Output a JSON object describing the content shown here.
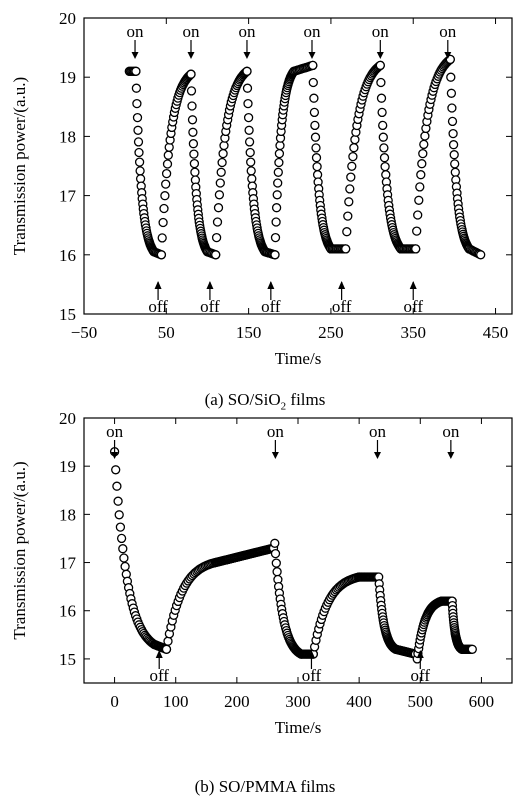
{
  "chart_data": [
    {
      "type": "scatter",
      "caption": "(a) SO/SiO₂ films",
      "caption_main": "(a) SO/SiO",
      "caption_sub": "2",
      "caption_tail": " films",
      "xlabel": "Time/s",
      "ylabel": "Transmission power/(a.u.)",
      "xlim": [
        -50,
        470
      ],
      "ylim": [
        15,
        20
      ],
      "xticks": [
        -50,
        50,
        150,
        250,
        350,
        450
      ],
      "yticks": [
        15,
        16,
        17,
        18,
        19,
        20
      ],
      "grid": false,
      "marker": "open-circle",
      "annotations": [
        {
          "text": "on",
          "x": 12,
          "dir": "down"
        },
        {
          "text": "on",
          "x": 80,
          "dir": "down"
        },
        {
          "text": "on",
          "x": 148,
          "dir": "down"
        },
        {
          "text": "on",
          "x": 227,
          "dir": "down"
        },
        {
          "text": "on",
          "x": 310,
          "dir": "down"
        },
        {
          "text": "on",
          "x": 392,
          "dir": "down"
        },
        {
          "text": "off",
          "x": 40,
          "dir": "up"
        },
        {
          "text": "off",
          "x": 103,
          "dir": "up"
        },
        {
          "text": "off",
          "x": 177,
          "dir": "up"
        },
        {
          "text": "off",
          "x": 263,
          "dir": "up"
        },
        {
          "text": "off",
          "x": 350,
          "dir": "up"
        }
      ],
      "segments": [
        {
          "from": [
            5,
            19.1
          ],
          "to": [
            13,
            19.1
          ],
          "kind": "flat"
        },
        {
          "from": [
            13,
            19.1
          ],
          "to": [
            35,
            16.05
          ],
          "kind": "decay"
        },
        {
          "from": [
            35,
            16.05
          ],
          "to": [
            44,
            16.0
          ],
          "kind": "flat"
        },
        {
          "from": [
            44,
            16.0
          ],
          "to": [
            80,
            19.05
          ],
          "kind": "rise"
        },
        {
          "from": [
            80,
            19.05
          ],
          "to": [
            100,
            16.05
          ],
          "kind": "decay"
        },
        {
          "from": [
            100,
            16.05
          ],
          "to": [
            110,
            16.0
          ],
          "kind": "flat"
        },
        {
          "from": [
            110,
            16.0
          ],
          "to": [
            148,
            19.1
          ],
          "kind": "rise"
        },
        {
          "from": [
            148,
            19.1
          ],
          "to": [
            170,
            16.05
          ],
          "kind": "decay"
        },
        {
          "from": [
            170,
            16.05
          ],
          "to": [
            182,
            16.0
          ],
          "kind": "flat"
        },
        {
          "from": [
            182,
            16.0
          ],
          "to": [
            205,
            19.1
          ],
          "kind": "rise"
        },
        {
          "from": [
            205,
            19.1
          ],
          "to": [
            228,
            19.2
          ],
          "kind": "flat"
        },
        {
          "from": [
            228,
            19.2
          ],
          "to": [
            250,
            16.1
          ],
          "kind": "decay"
        },
        {
          "from": [
            250,
            16.1
          ],
          "to": [
            268,
            16.1
          ],
          "kind": "flat"
        },
        {
          "from": [
            268,
            16.1
          ],
          "to": [
            310,
            19.2
          ],
          "kind": "rise"
        },
        {
          "from": [
            310,
            19.2
          ],
          "to": [
            335,
            16.1
          ],
          "kind": "decay"
        },
        {
          "from": [
            335,
            16.1
          ],
          "to": [
            353,
            16.1
          ],
          "kind": "flat"
        },
        {
          "from": [
            353,
            16.1
          ],
          "to": [
            395,
            19.3
          ],
          "kind": "rise"
        },
        {
          "from": [
            395,
            19.3
          ],
          "to": [
            418,
            16.1
          ],
          "kind": "decay"
        },
        {
          "from": [
            418,
            16.1
          ],
          "to": [
            432,
            16.0
          ],
          "kind": "flat"
        }
      ]
    },
    {
      "type": "scatter",
      "caption": "(b) SO/PMMA films",
      "caption_main": "(b) SO/PMMA films",
      "caption_sub": "",
      "caption_tail": "",
      "xlabel": "Time/s",
      "ylabel": "Transmission power/(a.u.)",
      "xlim": [
        -50,
        650
      ],
      "ylim": [
        14.5,
        20
      ],
      "xticks": [
        0,
        100,
        200,
        300,
        400,
        500,
        600
      ],
      "yticks": [
        15,
        16,
        17,
        18,
        19,
        20
      ],
      "grid": false,
      "marker": "open-circle",
      "annotations": [
        {
          "text": "on",
          "x": 0,
          "dir": "down"
        },
        {
          "text": "on",
          "x": 263,
          "dir": "down"
        },
        {
          "text": "on",
          "x": 430,
          "dir": "down"
        },
        {
          "text": "on",
          "x": 550,
          "dir": "down"
        },
        {
          "text": "off",
          "x": 73,
          "dir": "up"
        },
        {
          "text": "off",
          "x": 322,
          "dir": "up"
        },
        {
          "text": "off",
          "x": 500,
          "dir": "up"
        }
      ],
      "segments": [
        {
          "from": [
            0,
            19.3
          ],
          "to": [
            65,
            15.3
          ],
          "kind": "decay"
        },
        {
          "from": [
            65,
            15.3
          ],
          "to": [
            85,
            15.2
          ],
          "kind": "flat"
        },
        {
          "from": [
            85,
            15.2
          ],
          "to": [
            165,
            17.0
          ],
          "kind": "rise"
        },
        {
          "from": [
            165,
            17.0
          ],
          "to": [
            260,
            17.3
          ],
          "kind": "flat"
        },
        {
          "from": [
            262,
            17.4
          ],
          "to": [
            305,
            15.1
          ],
          "kind": "decay"
        },
        {
          "from": [
            305,
            15.1
          ],
          "to": [
            325,
            15.1
          ],
          "kind": "flat"
        },
        {
          "from": [
            325,
            15.1
          ],
          "to": [
            400,
            16.7
          ],
          "kind": "rise"
        },
        {
          "from": [
            400,
            16.7
          ],
          "to": [
            430,
            16.7
          ],
          "kind": "flat"
        },
        {
          "from": [
            432,
            16.7
          ],
          "to": [
            460,
            15.2
          ],
          "kind": "decay"
        },
        {
          "from": [
            460,
            15.2
          ],
          "to": [
            492,
            15.1
          ],
          "kind": "flat"
        },
        {
          "from": [
            495,
            15.0
          ],
          "to": [
            535,
            16.2
          ],
          "kind": "rise"
        },
        {
          "from": [
            535,
            16.2
          ],
          "to": [
            552,
            16.2
          ],
          "kind": "flat"
        },
        {
          "from": [
            552,
            16.2
          ],
          "to": [
            568,
            15.2
          ],
          "kind": "decay"
        },
        {
          "from": [
            568,
            15.2
          ],
          "to": [
            585,
            15.2
          ],
          "kind": "flat"
        }
      ]
    }
  ]
}
